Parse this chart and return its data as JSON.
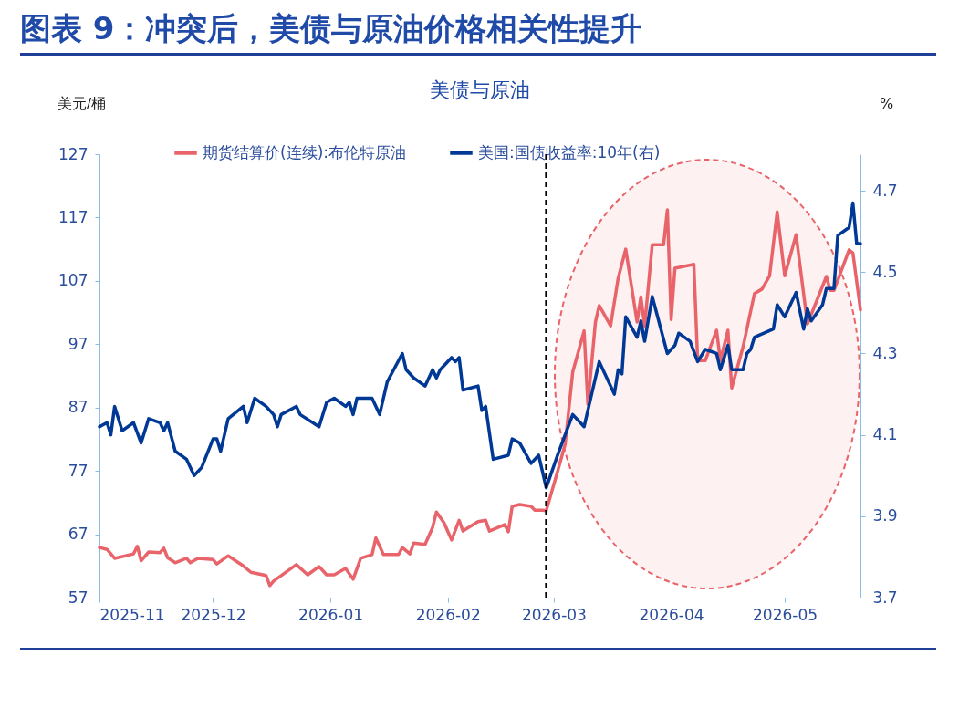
{
  "chart_data": {
    "type": "line",
    "title": "图表 9：冲突后，美债与原油价格相关性提升",
    "subtitle": "美债与原油",
    "ylabel": "美元/桶",
    "y2label": "%",
    "xlim": [
      "2025-11-01",
      "2026-05-21"
    ],
    "xticks": [
      "2025-11",
      "2025-12",
      "2026-01",
      "2026-02",
      "2026-03",
      "2026-04",
      "2026-05"
    ],
    "ylim": [
      57,
      127
    ],
    "yticks": [
      57,
      67,
      77,
      87,
      97,
      107,
      117,
      127
    ],
    "y2lim": [
      3.7,
      4.79
    ],
    "y2ticks": [
      3.7,
      3.9,
      4.1,
      4.3,
      4.5,
      4.7
    ],
    "legend": "top",
    "ref_lines": [
      {
        "axis": "x",
        "value": "2026-02-27",
        "color": "#000000",
        "line_style": "dashed"
      }
    ],
    "series": [
      {
        "name": "期货结算价(连续):布伦特原油",
        "color": "#e8646a",
        "x": [
          "2025-11-01",
          "2025-11-03",
          "2025-11-05",
          "2025-11-10",
          "2025-11-11",
          "2025-11-12",
          "2025-11-14",
          "2025-11-17",
          "2025-11-18",
          "2025-11-19",
          "2025-11-21",
          "2025-11-24",
          "2025-11-25",
          "2025-11-27",
          "2025-12-01",
          "2025-12-02",
          "2025-12-05",
          "2025-12-09",
          "2025-12-11",
          "2025-12-15",
          "2025-12-16",
          "2025-12-17",
          "2025-12-23",
          "2025-12-26",
          "2025-12-29",
          "2025-12-31",
          "2026-01-02",
          "2026-01-05",
          "2026-01-07",
          "2026-01-09",
          "2026-01-12",
          "2026-01-13",
          "2026-01-15",
          "2026-01-19",
          "2026-01-20",
          "2026-01-22",
          "2026-01-23",
          "2026-01-26",
          "2026-01-28",
          "2026-01-29",
          "2026-01-31",
          "2026-02-02",
          "2026-02-04",
          "2026-02-05",
          "2026-02-09",
          "2026-02-11",
          "2026-02-12",
          "2026-02-16",
          "2026-02-17",
          "2026-02-18",
          "2026-02-20",
          "2026-02-23",
          "2026-02-24",
          "2026-02-26",
          "2026-02-27",
          "2026-03-02",
          "2026-03-04",
          "2026-03-06",
          "2026-03-09",
          "2026-03-10",
          "2026-03-12",
          "2026-03-13",
          "2026-03-16",
          "2026-03-18",
          "2026-03-20",
          "2026-03-23",
          "2026-03-24",
          "2026-03-25",
          "2026-03-27",
          "2026-03-30",
          "2026-03-31",
          "2026-04-01",
          "2026-04-02",
          "2026-04-07",
          "2026-04-08",
          "2026-04-10",
          "2026-04-13",
          "2026-04-14",
          "2026-04-16",
          "2026-04-17",
          "2026-04-20",
          "2026-04-23",
          "2026-04-25",
          "2026-04-27",
          "2026-04-29",
          "2026-05-01",
          "2026-05-04",
          "2026-05-07",
          "2026-05-12",
          "2026-05-13",
          "2026-05-14",
          "2026-05-18",
          "2026-05-19",
          "2026-05-21"
        ],
        "values": [
          64.9,
          64.6,
          63.2,
          63.9,
          65.1,
          62.8,
          64.2,
          64.1,
          64.8,
          63.3,
          62.5,
          63.2,
          62.5,
          63.2,
          63.0,
          62.3,
          63.6,
          62.0,
          61.0,
          60.5,
          58.9,
          59.6,
          62.2,
          60.6,
          61.9,
          60.6,
          60.6,
          61.6,
          59.9,
          63.2,
          63.8,
          66.4,
          63.8,
          63.8,
          64.9,
          63.9,
          65.6,
          65.4,
          68.1,
          70.5,
          68.8,
          66.1,
          69.2,
          67.5,
          69.0,
          69.2,
          67.5,
          68.5,
          67.4,
          71.4,
          71.7,
          71.4,
          70.8,
          70.8,
          70.7,
          76.9,
          81.2,
          92.6,
          99.1,
          87.5,
          100.5,
          103.1,
          99.9,
          107.4,
          112.0,
          100.5,
          104.5,
          99.9,
          112.7,
          112.7,
          118.2,
          100.9,
          109.0,
          109.6,
          94.4,
          94.4,
          99.2,
          94.4,
          99.2,
          90.1,
          96.6,
          105.0,
          105.7,
          107.8,
          117.9,
          107.8,
          114.3,
          100.2,
          107.7,
          105.5,
          105.5,
          111.9,
          111.4,
          102.4
        ]
      },
      {
        "name": "美国:国债收益率:10年(右)",
        "color": "#003896",
        "axis": "y2",
        "x": [
          "2025-11-01",
          "2025-11-03",
          "2025-11-04",
          "2025-11-05",
          "2025-11-07",
          "2025-11-10",
          "2025-11-12",
          "2025-11-14",
          "2025-11-17",
          "2025-11-18",
          "2025-11-19",
          "2025-11-21",
          "2025-11-24",
          "2025-11-26",
          "2025-11-28",
          "2025-12-01",
          "2025-12-02",
          "2025-12-03",
          "2025-12-05",
          "2025-12-09",
          "2025-12-10",
          "2025-12-12",
          "2025-12-15",
          "2025-12-17",
          "2025-12-18",
          "2025-12-19",
          "2025-12-23",
          "2025-12-24",
          "2025-12-29",
          "2025-12-31",
          "2026-01-02",
          "2026-01-05",
          "2026-01-06",
          "2026-01-07",
          "2026-01-08",
          "2026-01-12",
          "2026-01-14",
          "2026-01-16",
          "2026-01-20",
          "2026-01-21",
          "2026-01-23",
          "2026-01-26",
          "2026-01-28",
          "2026-01-29",
          "2026-01-30",
          "2026-02-02",
          "2026-02-03",
          "2026-02-04",
          "2026-02-05",
          "2026-02-09",
          "2026-02-10",
          "2026-02-11",
          "2026-02-13",
          "2026-02-17",
          "2026-02-18",
          "2026-02-20",
          "2026-02-23",
          "2026-02-25",
          "2026-02-27",
          "2026-03-02",
          "2026-03-06",
          "2026-03-09",
          "2026-03-10",
          "2026-03-13",
          "2026-03-17",
          "2026-03-18",
          "2026-03-19",
          "2026-03-20",
          "2026-03-23",
          "2026-03-24",
          "2026-03-25",
          "2026-03-27",
          "2026-03-31",
          "2026-04-02",
          "2026-04-03",
          "2026-04-06",
          "2026-04-08",
          "2026-04-10",
          "2026-04-13",
          "2026-04-14",
          "2026-04-16",
          "2026-04-17",
          "2026-04-20",
          "2026-04-21",
          "2026-04-22",
          "2026-04-23",
          "2026-04-28",
          "2026-04-29",
          "2026-05-01",
          "2026-05-04",
          "2026-05-06",
          "2026-05-07",
          "2026-05-08",
          "2026-05-11",
          "2026-05-12",
          "2026-05-14",
          "2026-05-15",
          "2026-05-18",
          "2026-05-19",
          "2026-05-20",
          "2026-05-21"
        ],
        "values": [
          4.12,
          4.13,
          4.1,
          4.17,
          4.11,
          4.13,
          4.08,
          4.14,
          4.13,
          4.11,
          4.13,
          4.06,
          4.04,
          4.0,
          4.02,
          4.09,
          4.09,
          4.06,
          4.14,
          4.17,
          4.13,
          4.19,
          4.17,
          4.15,
          4.12,
          4.15,
          4.17,
          4.15,
          4.12,
          4.18,
          4.19,
          4.17,
          4.18,
          4.15,
          4.19,
          4.19,
          4.15,
          4.23,
          4.3,
          4.26,
          4.24,
          4.22,
          4.26,
          4.24,
          4.26,
          4.29,
          4.28,
          4.29,
          4.21,
          4.22,
          4.16,
          4.17,
          4.04,
          4.05,
          4.09,
          4.08,
          4.03,
          4.05,
          3.97,
          4.05,
          4.15,
          4.12,
          4.16,
          4.28,
          4.2,
          4.26,
          4.25,
          4.39,
          4.34,
          4.38,
          4.33,
          4.44,
          4.3,
          4.32,
          4.35,
          4.33,
          4.28,
          4.31,
          4.3,
          4.26,
          4.32,
          4.26,
          4.26,
          4.3,
          4.31,
          4.34,
          4.36,
          4.42,
          4.39,
          4.45,
          4.36,
          4.41,
          4.38,
          4.42,
          4.46,
          4.46,
          4.59,
          4.61,
          4.67,
          4.57,
          4.57
        ]
      }
    ]
  }
}
